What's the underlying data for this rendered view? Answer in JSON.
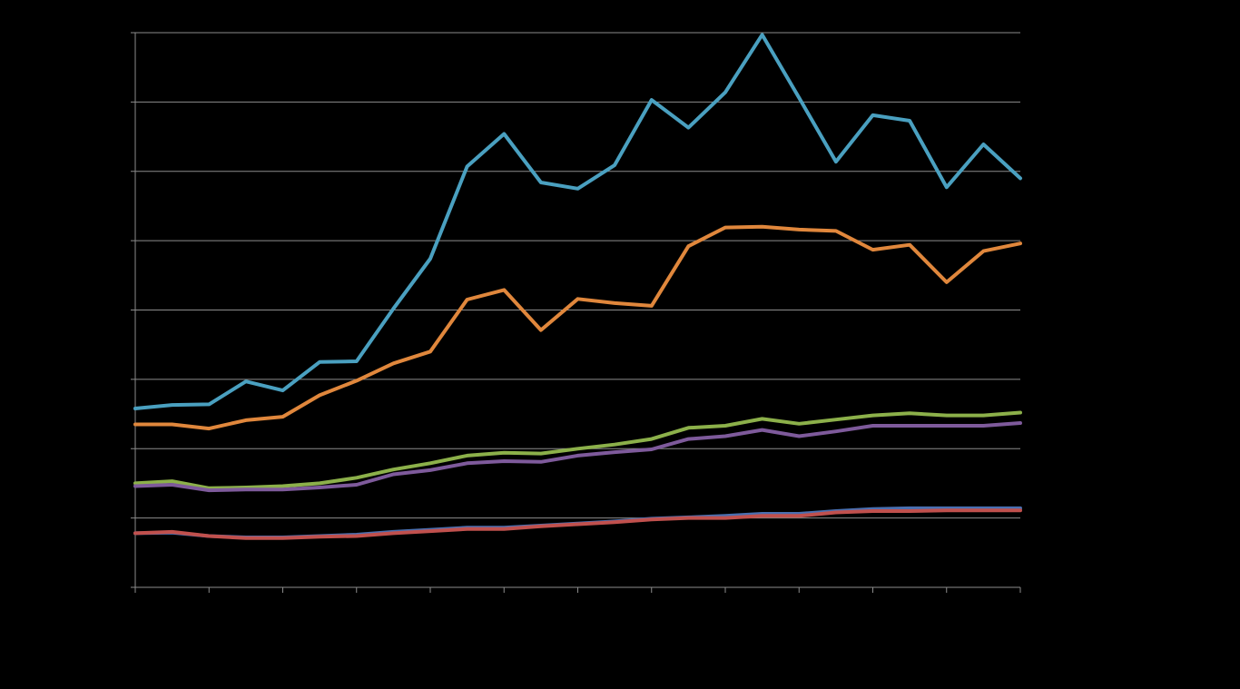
{
  "chart_data": {
    "type": "line",
    "title": "",
    "xlabel": "",
    "ylabel": "",
    "x": [
      0,
      1,
      2,
      3,
      4,
      5,
      6,
      7,
      8,
      9,
      10,
      11,
      12,
      13,
      14,
      15,
      16,
      17,
      18,
      19,
      20,
      21,
      22,
      23,
      24
    ],
    "xlim": [
      0,
      24
    ],
    "ylim": [
      0,
      8
    ],
    "y_ticks": [
      0,
      1,
      2,
      3,
      4,
      5,
      6,
      7,
      8
    ],
    "x_tick_count": 13,
    "grid": true,
    "series": [
      {
        "color": "#4aa0c0",
        "values": [
          2.58,
          2.63,
          2.64,
          2.97,
          2.84,
          3.25,
          3.26,
          4.02,
          4.74,
          6.07,
          6.54,
          5.84,
          5.75,
          6.09,
          7.03,
          6.63,
          7.14,
          7.97,
          7.06,
          6.14,
          6.81,
          6.73,
          5.77,
          6.39,
          5.9
        ]
      },
      {
        "color": "#e0873c",
        "values": [
          2.35,
          2.35,
          2.29,
          2.41,
          2.46,
          2.77,
          2.98,
          3.23,
          3.4,
          4.15,
          4.29,
          3.71,
          4.16,
          4.1,
          4.06,
          4.92,
          5.19,
          5.2,
          5.16,
          5.14,
          4.87,
          4.94,
          4.4,
          4.85,
          4.96
        ]
      },
      {
        "color": "#8cb04a",
        "values": [
          1.5,
          1.53,
          1.43,
          1.44,
          1.46,
          1.5,
          1.58,
          1.7,
          1.79,
          1.9,
          1.94,
          1.93,
          2.0,
          2.06,
          2.14,
          2.3,
          2.33,
          2.43,
          2.36,
          2.42,
          2.48,
          2.51,
          2.48,
          2.48,
          2.52
        ]
      },
      {
        "color": "#7e5a9b",
        "values": [
          1.46,
          1.48,
          1.4,
          1.41,
          1.41,
          1.44,
          1.48,
          1.63,
          1.69,
          1.79,
          1.82,
          1.81,
          1.9,
          1.95,
          1.99,
          2.14,
          2.18,
          2.27,
          2.18,
          2.25,
          2.33,
          2.33,
          2.33,
          2.33,
          2.37
        ]
      },
      {
        "color": "#4a6fb0",
        "values": [
          0.78,
          0.79,
          0.74,
          0.72,
          0.72,
          0.74,
          0.76,
          0.8,
          0.83,
          0.86,
          0.86,
          0.89,
          0.92,
          0.95,
          0.99,
          1.01,
          1.03,
          1.06,
          1.06,
          1.1,
          1.13,
          1.14,
          1.14,
          1.14,
          1.14
        ]
      },
      {
        "color": "#c0504d",
        "values": [
          0.78,
          0.8,
          0.74,
          0.71,
          0.71,
          0.73,
          0.74,
          0.78,
          0.81,
          0.84,
          0.84,
          0.88,
          0.91,
          0.94,
          0.98,
          1.0,
          1.0,
          1.03,
          1.03,
          1.08,
          1.1,
          1.1,
          1.11,
          1.11,
          1.11
        ]
      }
    ]
  }
}
